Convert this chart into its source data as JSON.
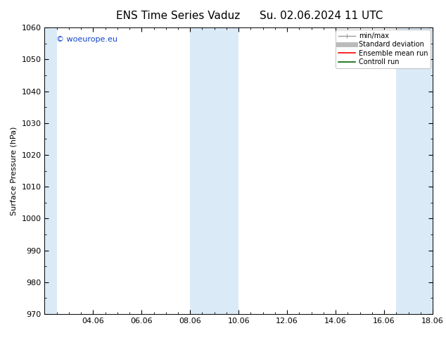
{
  "title_left": "ENS Time Series Vaduz",
  "title_right": "Su. 02.06.2024 11 UTC",
  "ylabel": "Surface Pressure (hPa)",
  "ylim": [
    970,
    1060
  ],
  "yticks": [
    970,
    980,
    990,
    1000,
    1010,
    1020,
    1030,
    1040,
    1050,
    1060
  ],
  "xlim": [
    0,
    16
  ],
  "xtick_labels": [
    "04.06",
    "06.06",
    "08.06",
    "10.06",
    "12.06",
    "14.06",
    "16.06",
    "18.06"
  ],
  "xtick_positions": [
    2,
    4,
    6,
    8,
    10,
    12,
    14,
    16
  ],
  "shaded_bands": [
    {
      "x_start": 0.0,
      "x_end": 0.5
    },
    {
      "x_start": 6.0,
      "x_end": 8.0
    },
    {
      "x_start": 14.5,
      "x_end": 16.0
    }
  ],
  "band_color": "#daeaf7",
  "background_color": "#ffffff",
  "legend_items": [
    {
      "label": "min/max",
      "color": "#999999",
      "lw": 1.0
    },
    {
      "label": "Standard deviation",
      "color": "#bbbbbb",
      "lw": 5
    },
    {
      "label": "Ensemble mean run",
      "color": "#ff0000",
      "lw": 1.2
    },
    {
      "label": "Controll run",
      "color": "#006600",
      "lw": 1.2
    }
  ],
  "watermark": "© woeurope.eu",
  "watermark_color": "#1144cc",
  "title_fontsize": 11,
  "ylabel_fontsize": 8,
  "tick_fontsize": 8,
  "legend_fontsize": 7
}
